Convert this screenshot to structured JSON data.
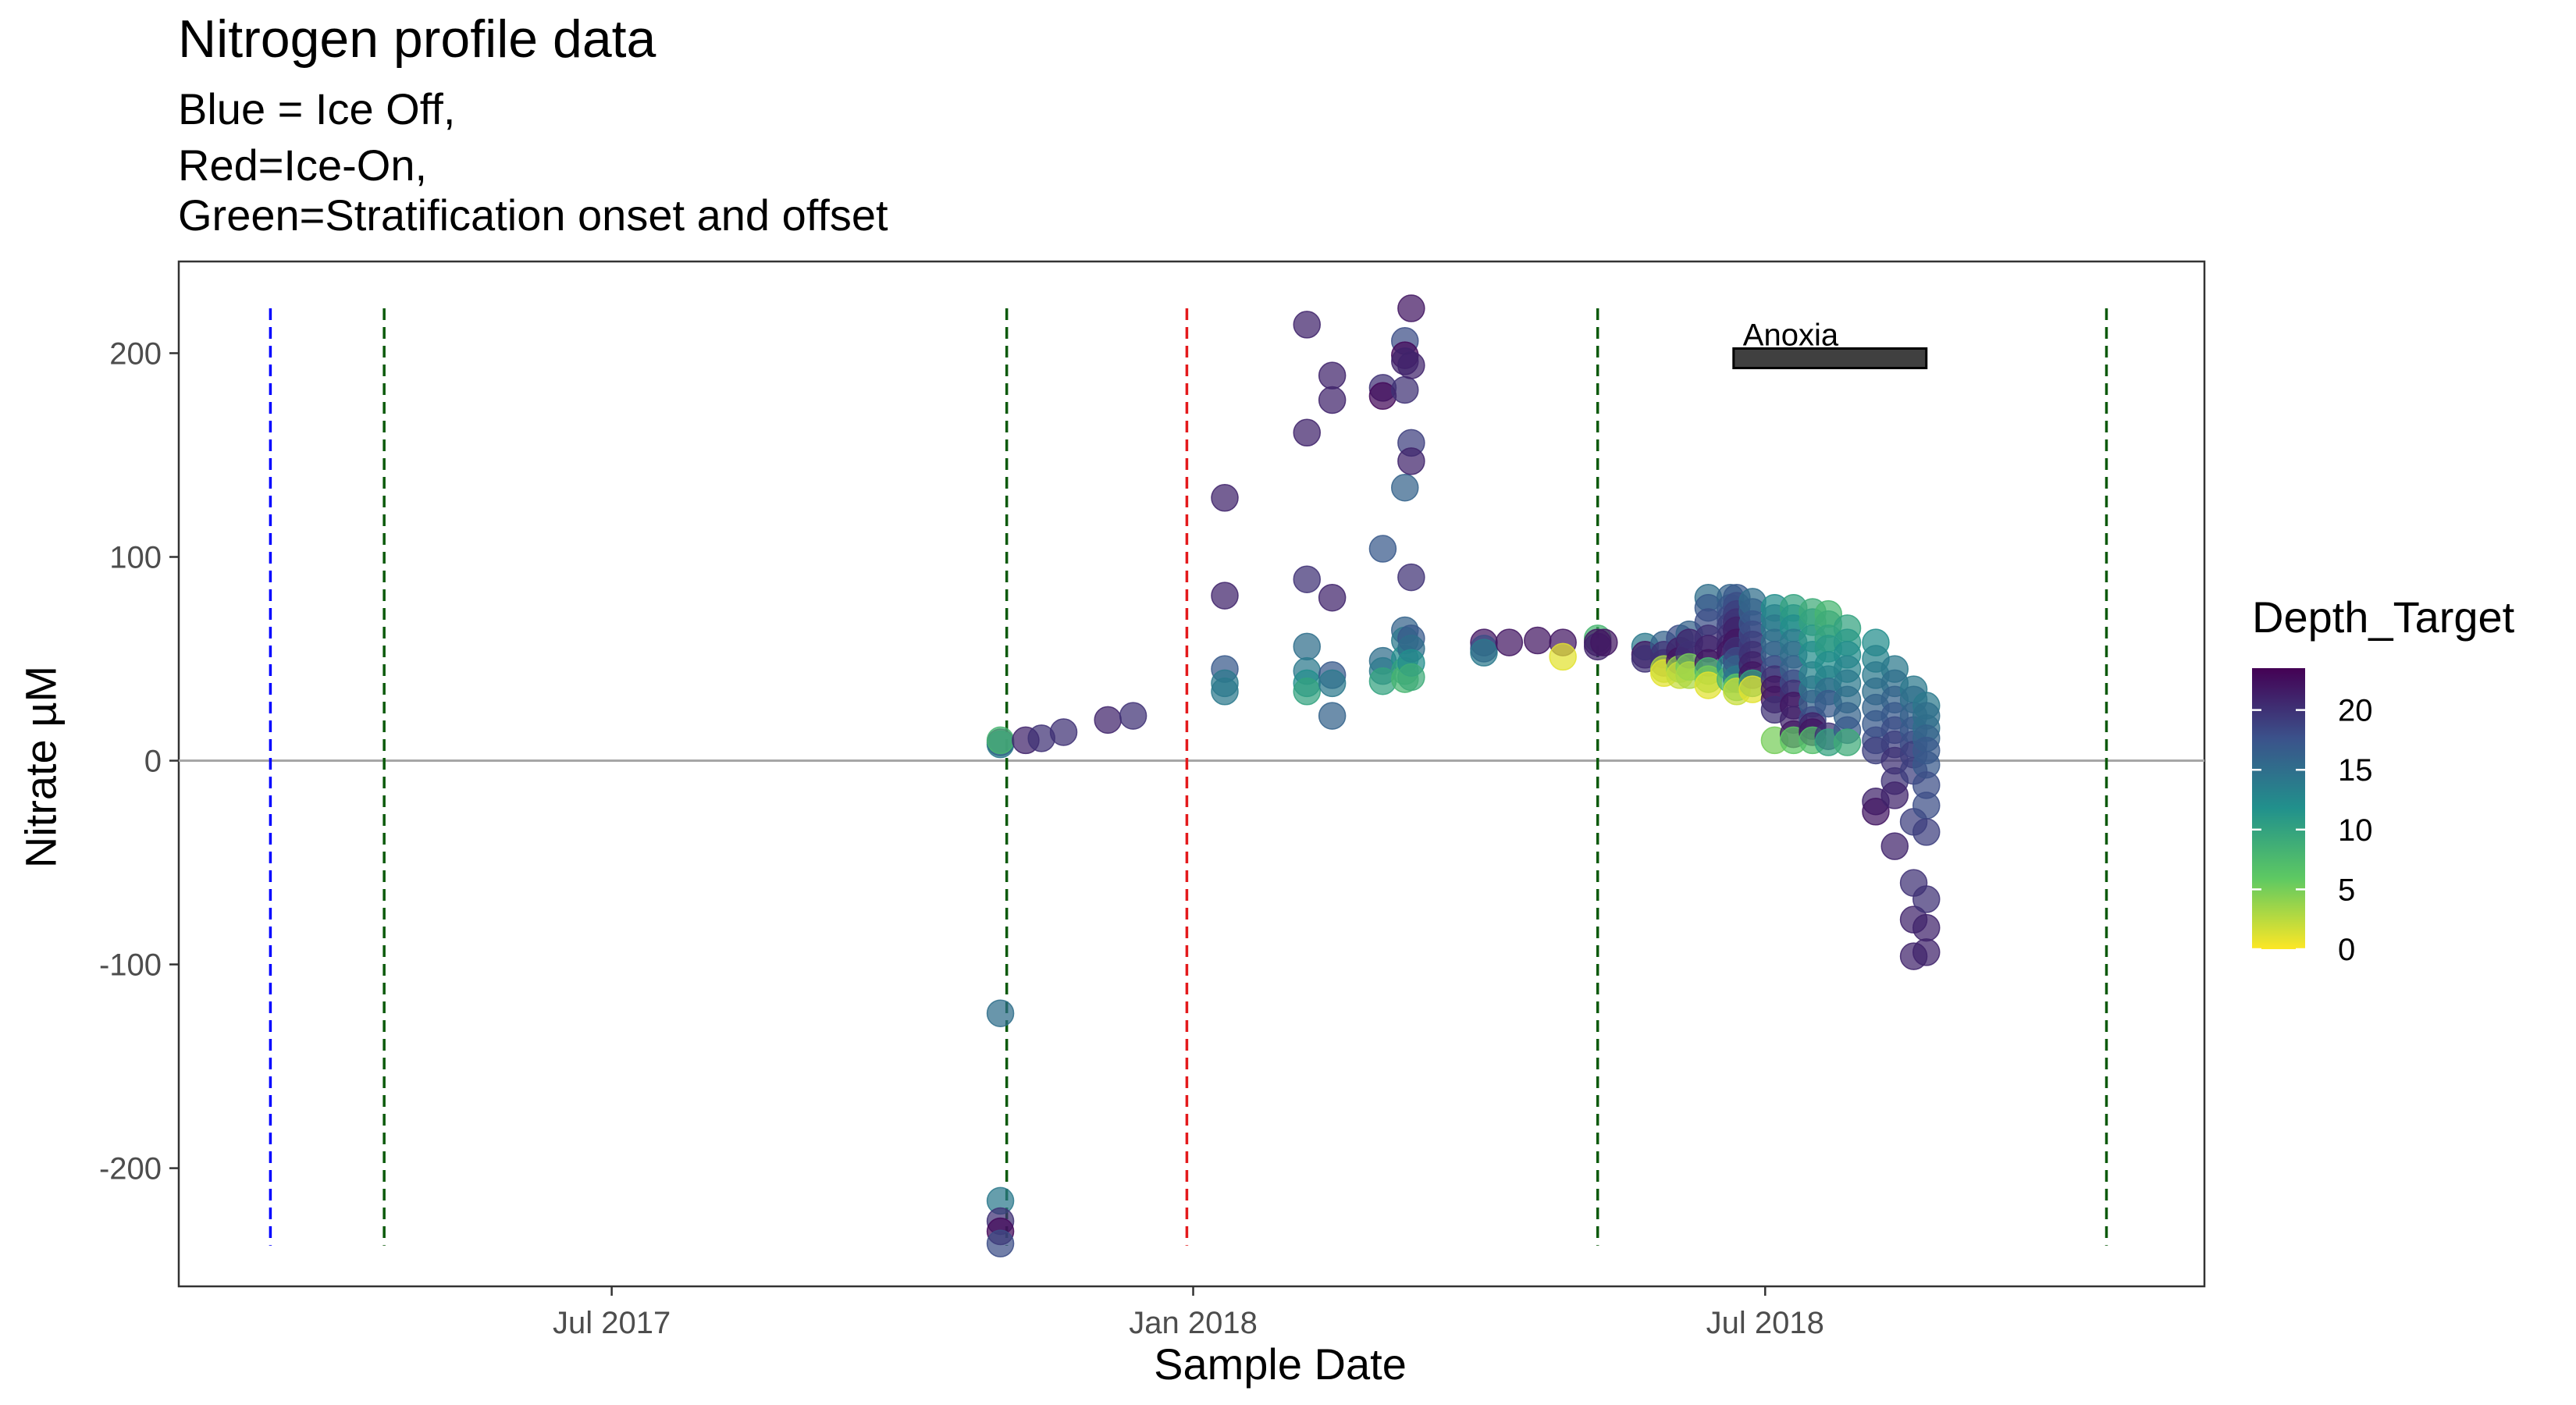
{
  "chart_data": {
    "type": "scatter",
    "title": "Nitrogen profile data",
    "subtitle": [
      "Blue = Ice Off,",
      "Red=Ice-On,",
      "Green=Stratification onset and offset"
    ],
    "xlabel": "Sample Date",
    "ylabel": "Nitrate µM",
    "x_ticks": [
      {
        "date": "2017-07-01",
        "label": "Jul 2017"
      },
      {
        "date": "2018-01-01",
        "label": "Jan 2018"
      },
      {
        "date": "2018-07-01",
        "label": "Jul 2018"
      }
    ],
    "y_ticks": [
      200,
      100,
      0,
      -100,
      -200
    ],
    "xlim": [
      "2017-02-14",
      "2018-11-17"
    ],
    "ylim": [
      -258,
      245
    ],
    "grid": false,
    "zero_line": {
      "y": 0,
      "color": "#a6a6a6"
    },
    "colors": {
      "ice_off": "#0000ff",
      "ice_on": "#e41a1c",
      "stratification": "#0b5a0b",
      "anoxia_bar": "#404040"
    },
    "vlines": [
      {
        "date": "2017-03-15",
        "kind": "ice_off"
      },
      {
        "date": "2017-04-20",
        "kind": "stratification"
      },
      {
        "date": "2017-11-03",
        "kind": "stratification"
      },
      {
        "date": "2017-12-30",
        "kind": "ice_on"
      },
      {
        "date": "2018-05-09",
        "kind": "stratification"
      },
      {
        "date": "2018-10-17",
        "kind": "stratification"
      }
    ],
    "vline_y_range": [
      -238,
      222
    ],
    "annotation": {
      "text": "Anoxia",
      "start": "2018-06-21",
      "end": "2018-08-21",
      "y": 195,
      "y_top": 200
    },
    "legend": {
      "title": "Depth_Target",
      "position": "right",
      "type": "colorbar",
      "range": [
        0,
        23.5
      ],
      "ticks": [
        20,
        15,
        10,
        5,
        0
      ]
    },
    "points": [
      {
        "date": "2017-11-01",
        "values": [
          9,
          8,
          10,
          -124,
          -216,
          -226,
          -231,
          -237
        ],
        "depths": [
          20,
          14,
          8,
          15,
          14,
          20,
          23,
          18
        ]
      },
      {
        "date": "2017-11-09",
        "values": [
          10
        ],
        "depths": [
          21
        ]
      },
      {
        "date": "2017-11-14",
        "values": [
          11
        ],
        "depths": [
          20
        ]
      },
      {
        "date": "2017-11-21",
        "values": [
          14
        ],
        "depths": [
          20
        ]
      },
      {
        "date": "2017-12-05",
        "values": [
          20
        ],
        "depths": [
          21
        ]
      },
      {
        "date": "2017-12-13",
        "values": [
          22
        ],
        "depths": [
          20
        ]
      },
      {
        "date": "2018-01-11",
        "values": [
          129,
          81,
          45,
          38,
          34
        ],
        "depths": [
          21,
          21,
          17,
          14,
          14
        ]
      },
      {
        "date": "2018-01-36",
        "values": [],
        "depths": []
      },
      {
        "date": "2018-02-06",
        "values": [
          214,
          161,
          89,
          56,
          44,
          38,
          34
        ],
        "depths": [
          21,
          21,
          20,
          15,
          14,
          12,
          10
        ]
      },
      {
        "date": "2018-02-14",
        "values": [
          189,
          177,
          80,
          42,
          38,
          22
        ],
        "depths": [
          21,
          21,
          21,
          17,
          14,
          16
        ]
      },
      {
        "date": "2018-03-02",
        "values": [
          183,
          179,
          104,
          49,
          44,
          39
        ],
        "depths": [
          20,
          23,
          17,
          15,
          14,
          10
        ]
      },
      {
        "date": "2018-03-09",
        "values": [
          206,
          199,
          196,
          182,
          134,
          64,
          59,
          50,
          44,
          40
        ],
        "depths": [
          18,
          23,
          21,
          20,
          16,
          16,
          14,
          12,
          10,
          8
        ]
      },
      {
        "date": "2018-03-11",
        "values": [
          222,
          194,
          156,
          147,
          90,
          60,
          55,
          48,
          41
        ],
        "depths": [
          22,
          21,
          19,
          21,
          20,
          17,
          15,
          12,
          9
        ]
      },
      {
        "date": "2018-04-03",
        "values": [
          58,
          55,
          53
        ],
        "depths": [
          22,
          18,
          14
        ]
      },
      {
        "date": "2018-04-11",
        "values": [
          58
        ],
        "depths": [
          22
        ]
      },
      {
        "date": "2018-04-20",
        "values": [
          59
        ],
        "depths": [
          22
        ]
      },
      {
        "date": "2018-04-28",
        "values": [
          58,
          51
        ],
        "depths": [
          22,
          1
        ]
      },
      {
        "date": "2018-05-09",
        "values": [
          60,
          58,
          56
        ],
        "depths": [
          8,
          22,
          21
        ]
      },
      {
        "date": "2018-05-11",
        "values": [
          58
        ],
        "depths": [
          22
        ]
      },
      {
        "date": "2018-05-24",
        "values": [
          56,
          52,
          50
        ],
        "depths": [
          14,
          22,
          20
        ]
      },
      {
        "date": "2018-05-30",
        "values": [
          57,
          52,
          48,
          45,
          43
        ],
        "depths": [
          16,
          20,
          20,
          3,
          1
        ]
      },
      {
        "date": "2018-06-04",
        "values": [
          60,
          54,
          49,
          45,
          42
        ],
        "depths": [
          18,
          21,
          22,
          4,
          2
        ]
      },
      {
        "date": "2018-06-07",
        "values": [
          62,
          58,
          52,
          46,
          42
        ],
        "depths": [
          16,
          21,
          20,
          5,
          3
        ]
      },
      {
        "date": "2018-06-13",
        "values": [
          80,
          75,
          68,
          60,
          55,
          48,
          44,
          40,
          37
        ],
        "depths": [
          15,
          17,
          18,
          20,
          21,
          22,
          8,
          5,
          1
        ]
      },
      {
        "date": "2018-06-20",
        "values": [
          80,
          75,
          70,
          66,
          61,
          56,
          53,
          46,
          40
        ],
        "depths": [
          16,
          17,
          18,
          19,
          20,
          21,
          22,
          12,
          8
        ]
      },
      {
        "date": "2018-06-22",
        "values": [
          80,
          76,
          72,
          68,
          64,
          58,
          54,
          49,
          45,
          40,
          36,
          34
        ],
        "depths": [
          17,
          18,
          19,
          20,
          21,
          22,
          20,
          18,
          16,
          14,
          6,
          2
        ]
      },
      {
        "date": "2018-06-27",
        "values": [
          78,
          73,
          67,
          62,
          57,
          52,
          47,
          42,
          38,
          35
        ],
        "depths": [
          15,
          16,
          17,
          18,
          19,
          20,
          21,
          22,
          10,
          1
        ]
      },
      {
        "date": "2018-07-04",
        "values": [
          75,
          70,
          65,
          58,
          52,
          45,
          40,
          35,
          30,
          25,
          10
        ],
        "depths": [
          12,
          13,
          14,
          15,
          16,
          18,
          20,
          22,
          22,
          20,
          5
        ]
      },
      {
        "date": "2018-07-10",
        "values": [
          75,
          70,
          65,
          58,
          52,
          45,
          38,
          33,
          27,
          20,
          13,
          10
        ],
        "depths": [
          10,
          11,
          12,
          14,
          15,
          16,
          18,
          20,
          22,
          21,
          22,
          6
        ]
      },
      {
        "date": "2018-07-16",
        "values": [
          73,
          68,
          60,
          52,
          42,
          35,
          28,
          20,
          17,
          14,
          10
        ],
        "depths": [
          9,
          10,
          11,
          12,
          13,
          14,
          16,
          18,
          21,
          22,
          7
        ]
      },
      {
        "date": "2018-07-21",
        "values": [
          72,
          67,
          60,
          55,
          47,
          40,
          34,
          28,
          12,
          9
        ],
        "depths": [
          8,
          9,
          10,
          11,
          12,
          13,
          15,
          17,
          20,
          10
        ]
      },
      {
        "date": "2018-07-27",
        "values": [
          65,
          58,
          52,
          45,
          38,
          30,
          22,
          15,
          9
        ],
        "depths": [
          10,
          11,
          12,
          13,
          14,
          15,
          16,
          17,
          9
        ]
      },
      {
        "date": "2018-08-05",
        "values": [
          58,
          50,
          42,
          34,
          26,
          18,
          10,
          5,
          -20,
          -25
        ],
        "depths": [
          12,
          13,
          14,
          15,
          16,
          17,
          18,
          19,
          21,
          22
        ]
      },
      {
        "date": "2018-08-11",
        "values": [
          45,
          38,
          30,
          22,
          15,
          8,
          0,
          -10,
          -17,
          -42
        ],
        "depths": [
          14,
          15,
          16,
          17,
          18,
          19,
          20,
          20,
          21,
          21
        ]
      },
      {
        "date": "2018-08-17",
        "values": [
          35,
          30,
          22,
          15,
          8,
          3,
          -5,
          -30,
          -60,
          -78,
          -96
        ],
        "depths": [
          14,
          15,
          16,
          17,
          18,
          19,
          19,
          19,
          20,
          21,
          21
        ]
      },
      {
        "date": "2018-08-21",
        "values": [
          27,
          22,
          16,
          11,
          5,
          -2,
          -12,
          -22,
          -35,
          -68,
          -82,
          -94
        ],
        "depths": [
          14,
          15,
          15,
          16,
          17,
          17,
          18,
          18,
          19,
          20,
          21,
          21
        ]
      }
    ]
  }
}
